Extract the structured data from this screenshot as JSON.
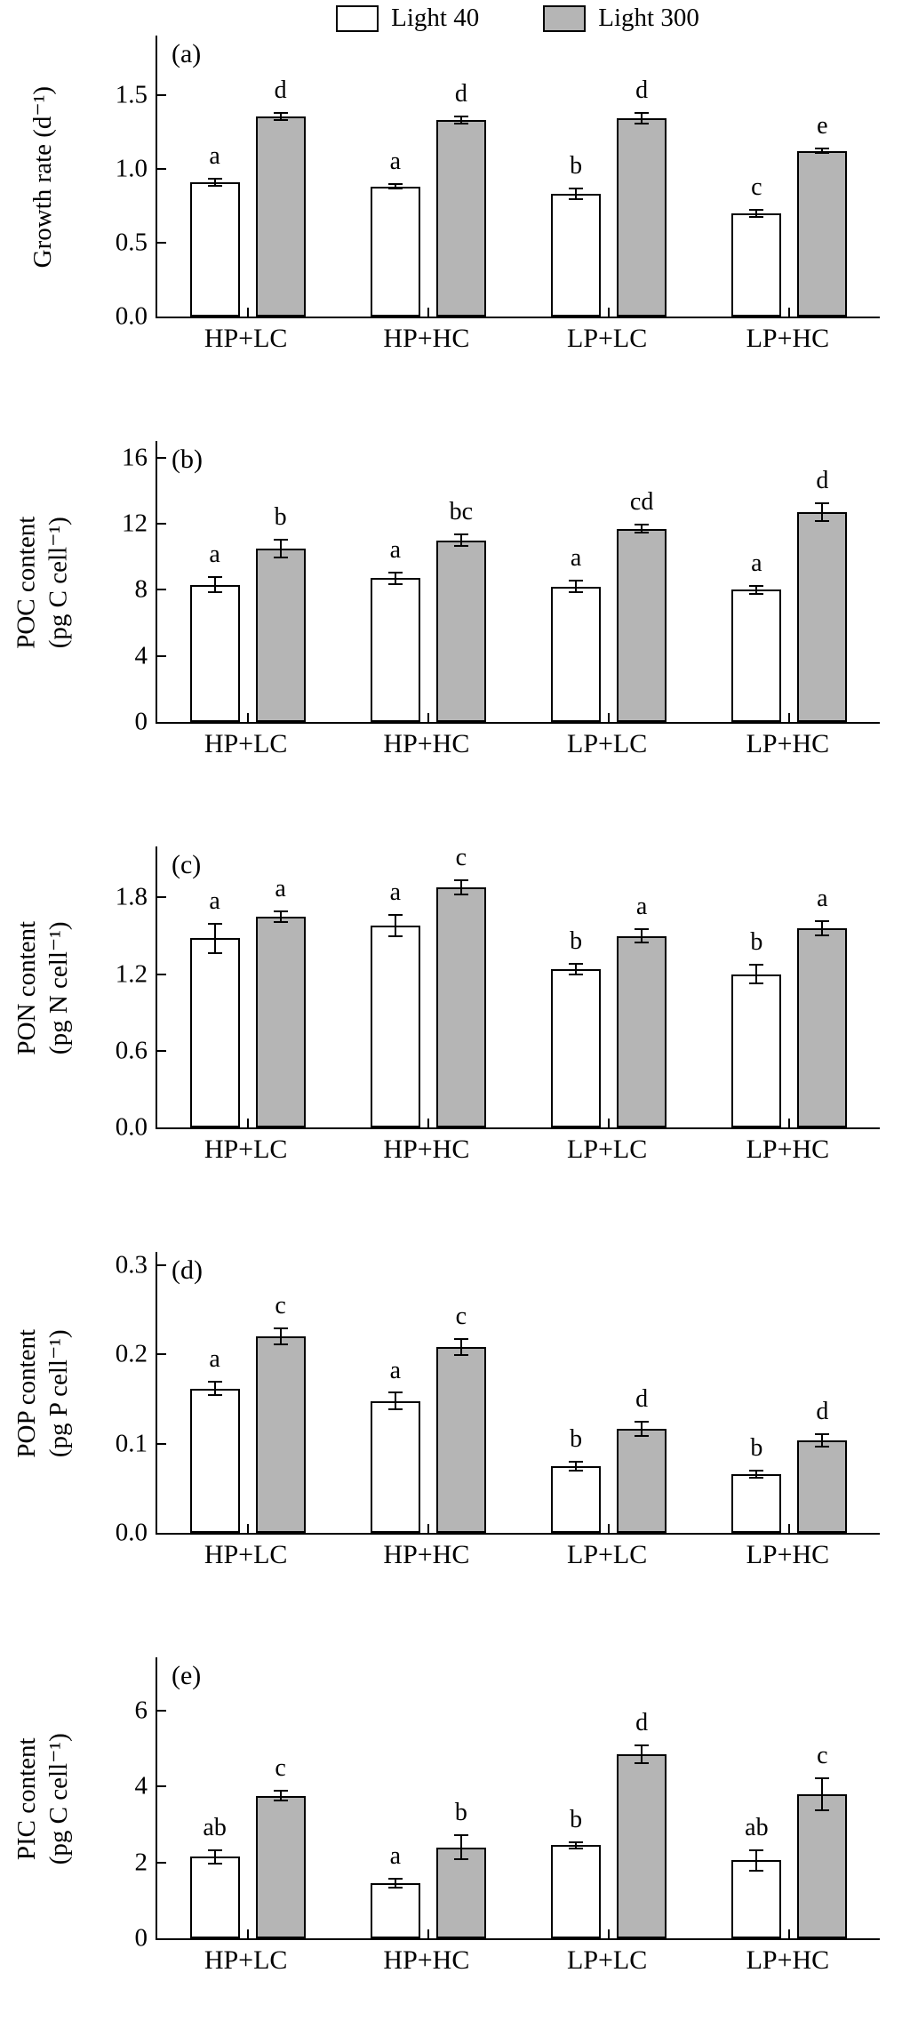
{
  "figure": {
    "background": "#ffffff",
    "axis_color": "#000000"
  },
  "legend": {
    "items": [
      {
        "label": "Light 40",
        "color": "#ffffff"
      },
      {
        "label": "Light 300",
        "color": "#b5b5b5"
      }
    ]
  },
  "chart_data": [
    {
      "type": "bar",
      "panel": "(a)",
      "ylabel1": "Growth rate (d⁻¹)",
      "ylabel2": "",
      "categories": [
        "HP+LC",
        "HP+HC",
        "LP+LC",
        "LP+HC"
      ],
      "series": [
        {
          "name": "Light 40",
          "values": [
            0.91,
            0.88,
            0.83,
            0.7
          ],
          "errors": [
            0.03,
            0.02,
            0.04,
            0.03
          ],
          "letters": [
            "a",
            "a",
            "b",
            "c"
          ]
        },
        {
          "name": "Light 300",
          "values": [
            1.35,
            1.33,
            1.34,
            1.12
          ],
          "errors": [
            0.03,
            0.03,
            0.04,
            0.02
          ],
          "letters": [
            "d",
            "d",
            "d",
            "e"
          ]
        }
      ],
      "ylim": [
        0,
        1.9
      ],
      "yticks": [
        0,
        0.5,
        1.0,
        1.5
      ],
      "ytick_labels": [
        "0.0",
        "0.5",
        "1.0",
        "1.5"
      ],
      "grid": false,
      "legend_position": "top-center"
    },
    {
      "type": "bar",
      "panel": "(b)",
      "ylabel1": "POC content",
      "ylabel2": "(pg C cell⁻¹)",
      "categories": [
        "HP+LC",
        "HP+HC",
        "LP+LC",
        "LP+HC"
      ],
      "series": [
        {
          "name": "Light 40",
          "values": [
            8.3,
            8.7,
            8.2,
            8.0
          ],
          "errors": [
            0.5,
            0.4,
            0.4,
            0.3
          ],
          "letters": [
            "a",
            "a",
            "a",
            "a"
          ]
        },
        {
          "name": "Light 300",
          "values": [
            10.5,
            11.0,
            11.7,
            12.7
          ],
          "errors": [
            0.6,
            0.4,
            0.3,
            0.6
          ],
          "letters": [
            "b",
            "bc",
            "cd",
            "d"
          ]
        }
      ],
      "ylim": [
        0,
        17
      ],
      "yticks": [
        0,
        4,
        8,
        12,
        16
      ],
      "ytick_labels": [
        "0",
        "4",
        "8",
        "12",
        "16"
      ],
      "grid": false
    },
    {
      "type": "bar",
      "panel": "(c)",
      "ylabel1": "PON content",
      "ylabel2": "(pg N cell⁻¹)",
      "categories": [
        "HP+LC",
        "HP+HC",
        "LP+LC",
        "LP+HC"
      ],
      "series": [
        {
          "name": "Light 40",
          "values": [
            1.48,
            1.58,
            1.24,
            1.2
          ],
          "errors": [
            0.12,
            0.09,
            0.05,
            0.08
          ],
          "letters": [
            "a",
            "a",
            "b",
            "b"
          ]
        },
        {
          "name": "Light 300",
          "values": [
            1.65,
            1.88,
            1.5,
            1.56
          ],
          "errors": [
            0.05,
            0.06,
            0.06,
            0.06
          ],
          "letters": [
            "a",
            "c",
            "a",
            "a"
          ]
        }
      ],
      "ylim": [
        0,
        2.2
      ],
      "yticks": [
        0,
        0.6,
        1.2,
        1.8
      ],
      "ytick_labels": [
        "0.0",
        "0.6",
        "1.2",
        "1.8"
      ],
      "grid": false
    },
    {
      "type": "bar",
      "panel": "(d)",
      "ylabel1": "POP content",
      "ylabel2": "(pg P cell⁻¹)",
      "categories": [
        "HP+LC",
        "HP+HC",
        "LP+LC",
        "LP+HC"
      ],
      "series": [
        {
          "name": "Light 40",
          "values": [
            0.162,
            0.148,
            0.075,
            0.066
          ],
          "errors": [
            0.008,
            0.01,
            0.006,
            0.005
          ],
          "letters": [
            "a",
            "a",
            "b",
            "b"
          ]
        },
        {
          "name": "Light 300",
          "values": [
            0.22,
            0.208,
            0.117,
            0.104
          ],
          "errors": [
            0.01,
            0.01,
            0.009,
            0.008
          ],
          "letters": [
            "c",
            "c",
            "d",
            "d"
          ]
        }
      ],
      "ylim": [
        0,
        0.315
      ],
      "yticks": [
        0,
        0.1,
        0.2,
        0.3
      ],
      "ytick_labels": [
        "0.0",
        "0.1",
        "0.2",
        "0.3"
      ],
      "grid": false
    },
    {
      "type": "bar",
      "panel": "(e)",
      "ylabel1": "PIC content",
      "ylabel2": "(pg C cell⁻¹)",
      "categories": [
        "HP+LC",
        "HP+HC",
        "LP+LC",
        "LP+HC"
      ],
      "series": [
        {
          "name": "Light 40",
          "values": [
            2.15,
            1.45,
            2.45,
            2.05
          ],
          "errors": [
            0.2,
            0.15,
            0.1,
            0.3
          ],
          "letters": [
            "ab",
            "a",
            "b",
            "ab"
          ]
        },
        {
          "name": "Light 300",
          "values": [
            3.75,
            2.4,
            4.85,
            3.8
          ],
          "errors": [
            0.15,
            0.35,
            0.25,
            0.45
          ],
          "letters": [
            "c",
            "b",
            "d",
            "c"
          ]
        }
      ],
      "ylim": [
        0,
        7.4
      ],
      "yticks": [
        0,
        2,
        4,
        6
      ],
      "ytick_labels": [
        "0",
        "2",
        "4",
        "6"
      ],
      "grid": false
    }
  ]
}
